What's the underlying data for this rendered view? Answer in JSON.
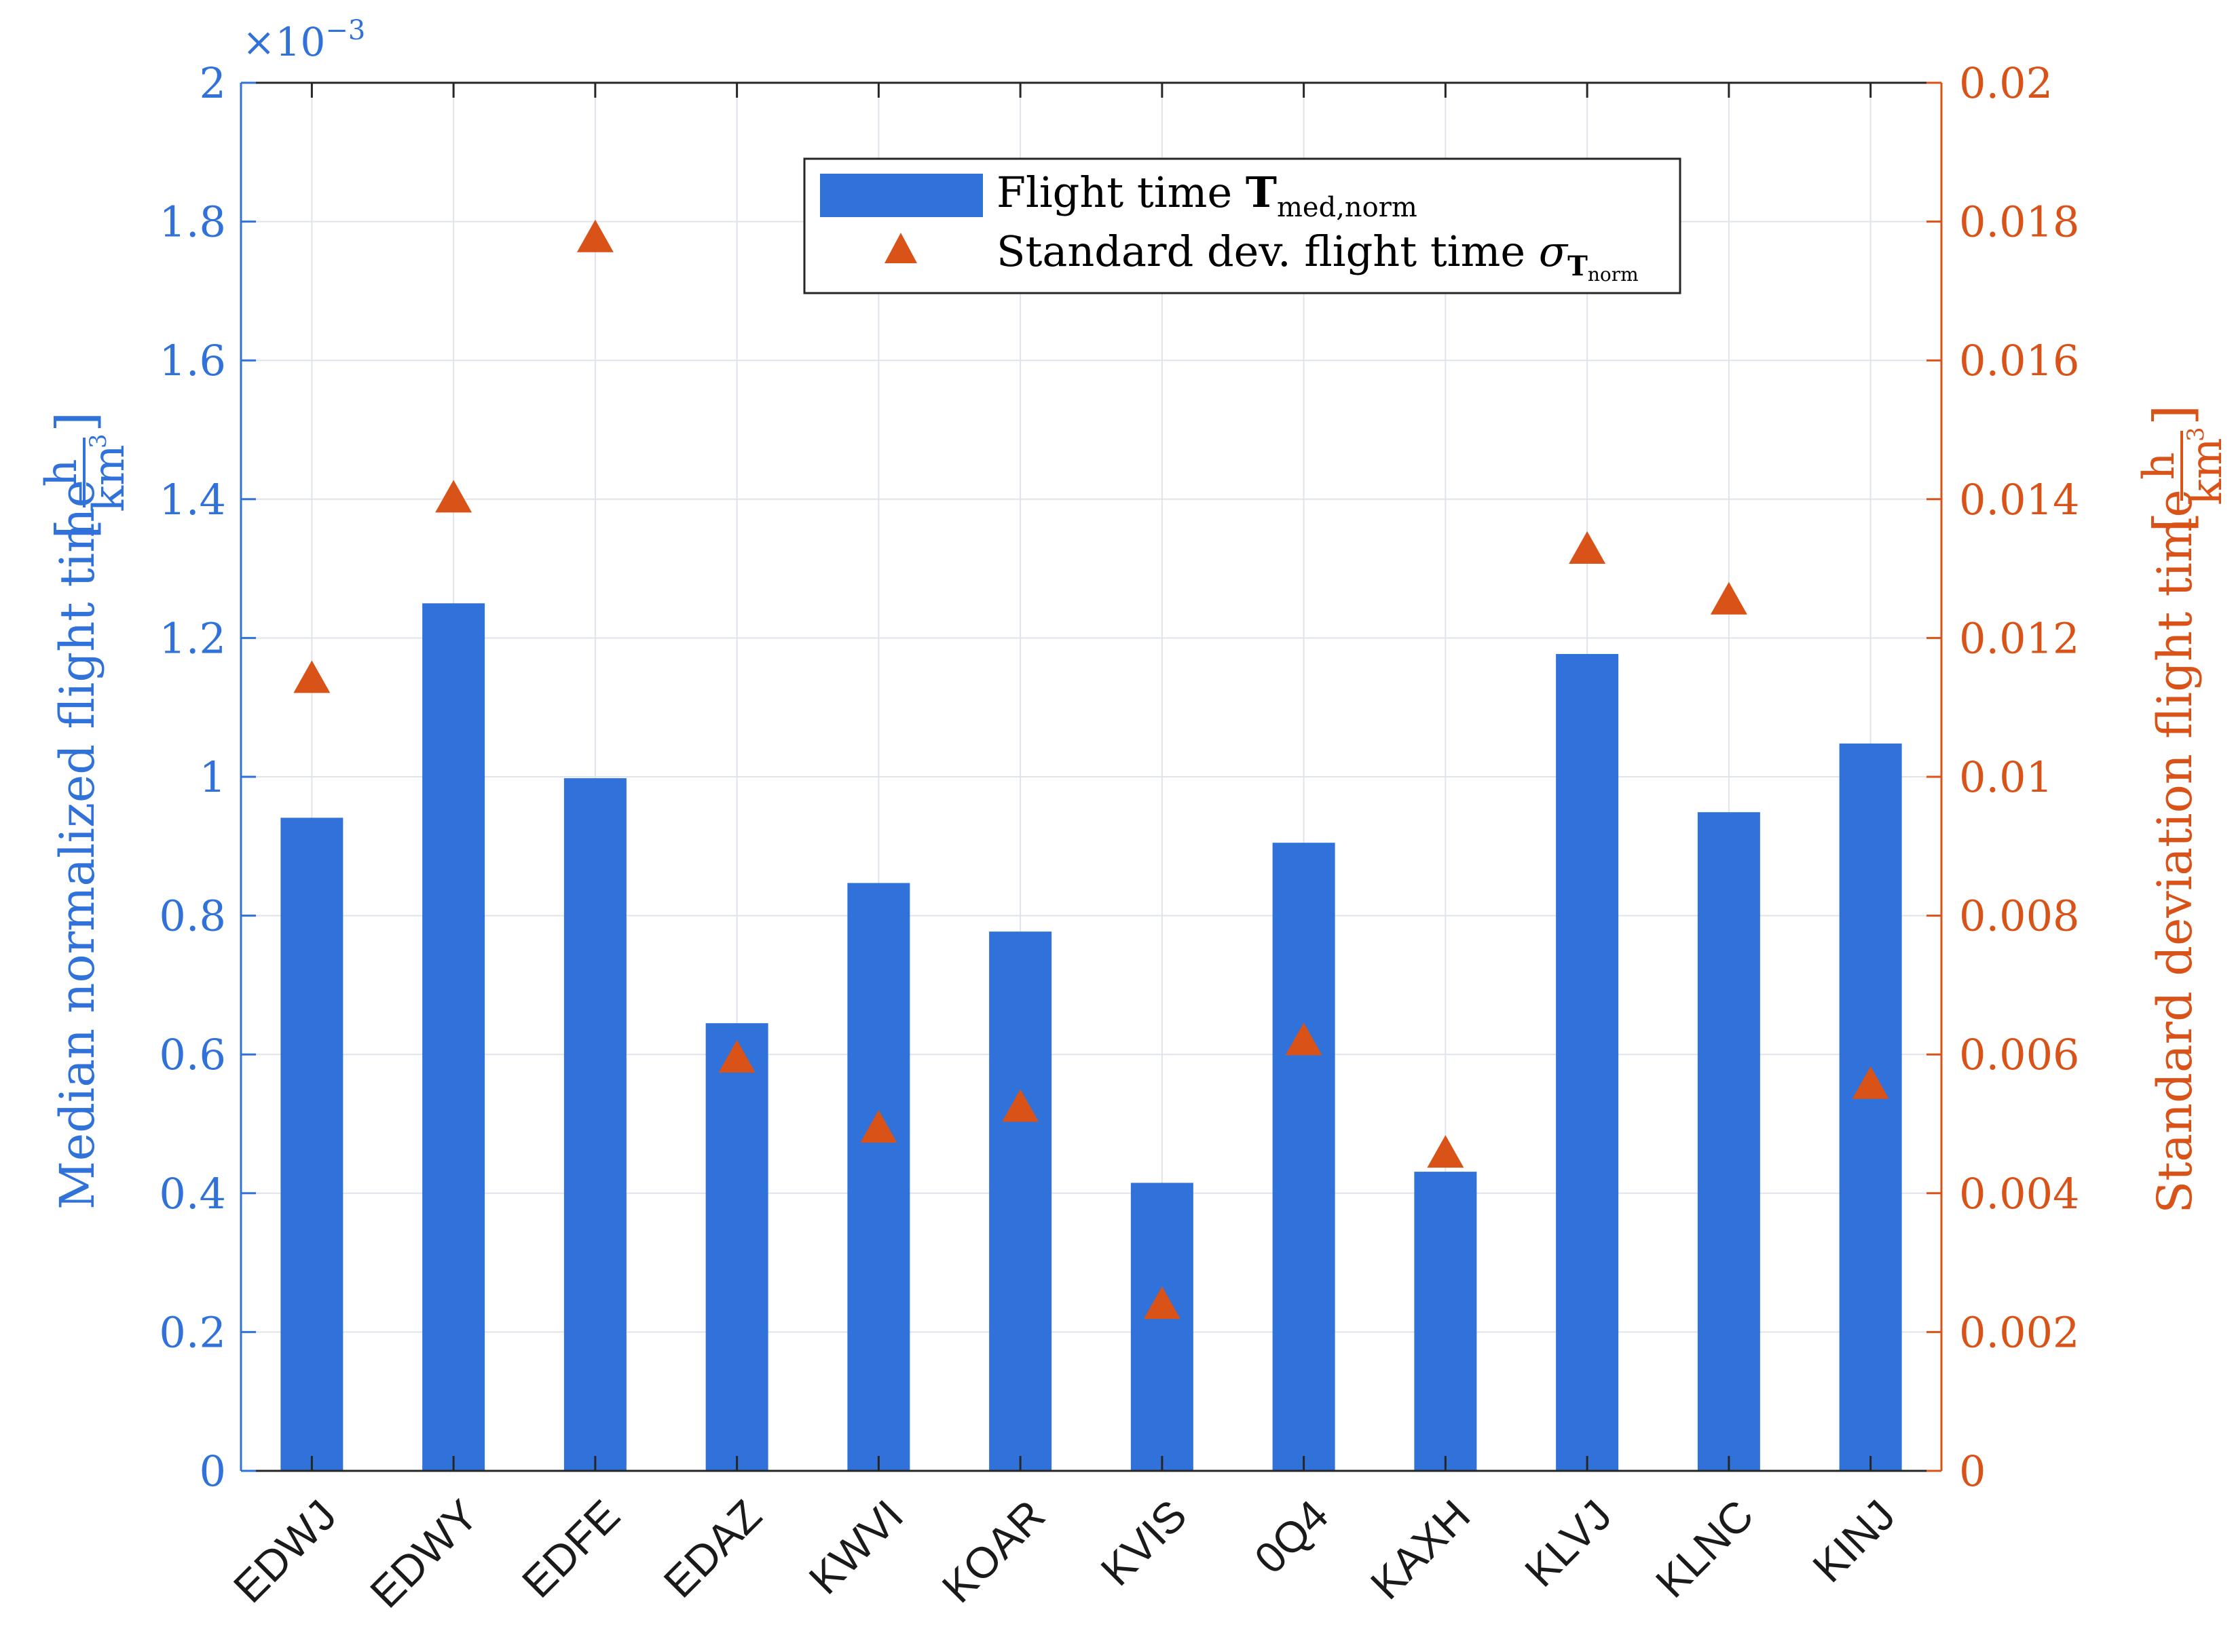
{
  "colors": {
    "left_axis": "#3072d9",
    "right_axis": "#d95319",
    "bar": "#3072d9",
    "marker": "#d95319",
    "grid": "#dfe3ea",
    "axis_box": "#262626"
  },
  "chart_data": {
    "type": "bar",
    "categories": [
      "EDWJ",
      "EDWY",
      "EDFE",
      "EDAZ",
      "KWVI",
      "KOAR",
      "KVIS",
      "0Q4",
      "KAXH",
      "KLVJ",
      "KLNC",
      "KINJ"
    ],
    "series": [
      {
        "name": "Flight time T_med,norm",
        "axis": "left",
        "type": "bar",
        "values": [
          0.000941,
          0.00125,
          0.000998,
          0.000645,
          0.000847,
          0.000777,
          0.000415,
          0.000905,
          0.000431,
          0.001177,
          0.000949,
          0.001048
        ]
      },
      {
        "name": "Standard dev. flight time σ_T_norm",
        "axis": "right",
        "type": "scatter",
        "marker": "triangle",
        "values": [
          0.01142,
          0.01402,
          0.01777,
          0.00595,
          0.00494,
          0.00524,
          0.0024,
          0.0062,
          0.00458,
          0.01328,
          0.01255,
          0.00557
        ]
      }
    ],
    "left_axis": {
      "label": "Median normalized flight time",
      "unit_num": "h",
      "unit_den": "km",
      "unit_den_exp": "3",
      "ylim": [
        0,
        0.002
      ],
      "ticks": [
        "0",
        "0.2",
        "0.4",
        "0.6",
        "0.8",
        "1",
        "1.2",
        "1.4",
        "1.6",
        "1.8",
        "2"
      ],
      "exponent_prefix": "×10",
      "exponent": "−3"
    },
    "right_axis": {
      "label": "Standard deviation flight time",
      "unit_num": "h",
      "unit_den": "km",
      "unit_den_exp": "3",
      "ylim": [
        0,
        0.02
      ],
      "ticks": [
        "0",
        "0.002",
        "0.004",
        "0.006",
        "0.008",
        "0.01",
        "0.012",
        "0.014",
        "0.016",
        "0.018",
        "0.02"
      ]
    },
    "legend": {
      "placement": "top-center",
      "entries": [
        {
          "main": "Flight time ",
          "bold": "T",
          "sub": "med,norm"
        },
        {
          "main": "Standard dev. flight time ",
          "sym": "σ",
          "sub_bold": "T",
          "subsub": "norm"
        }
      ]
    },
    "grid": true
  }
}
